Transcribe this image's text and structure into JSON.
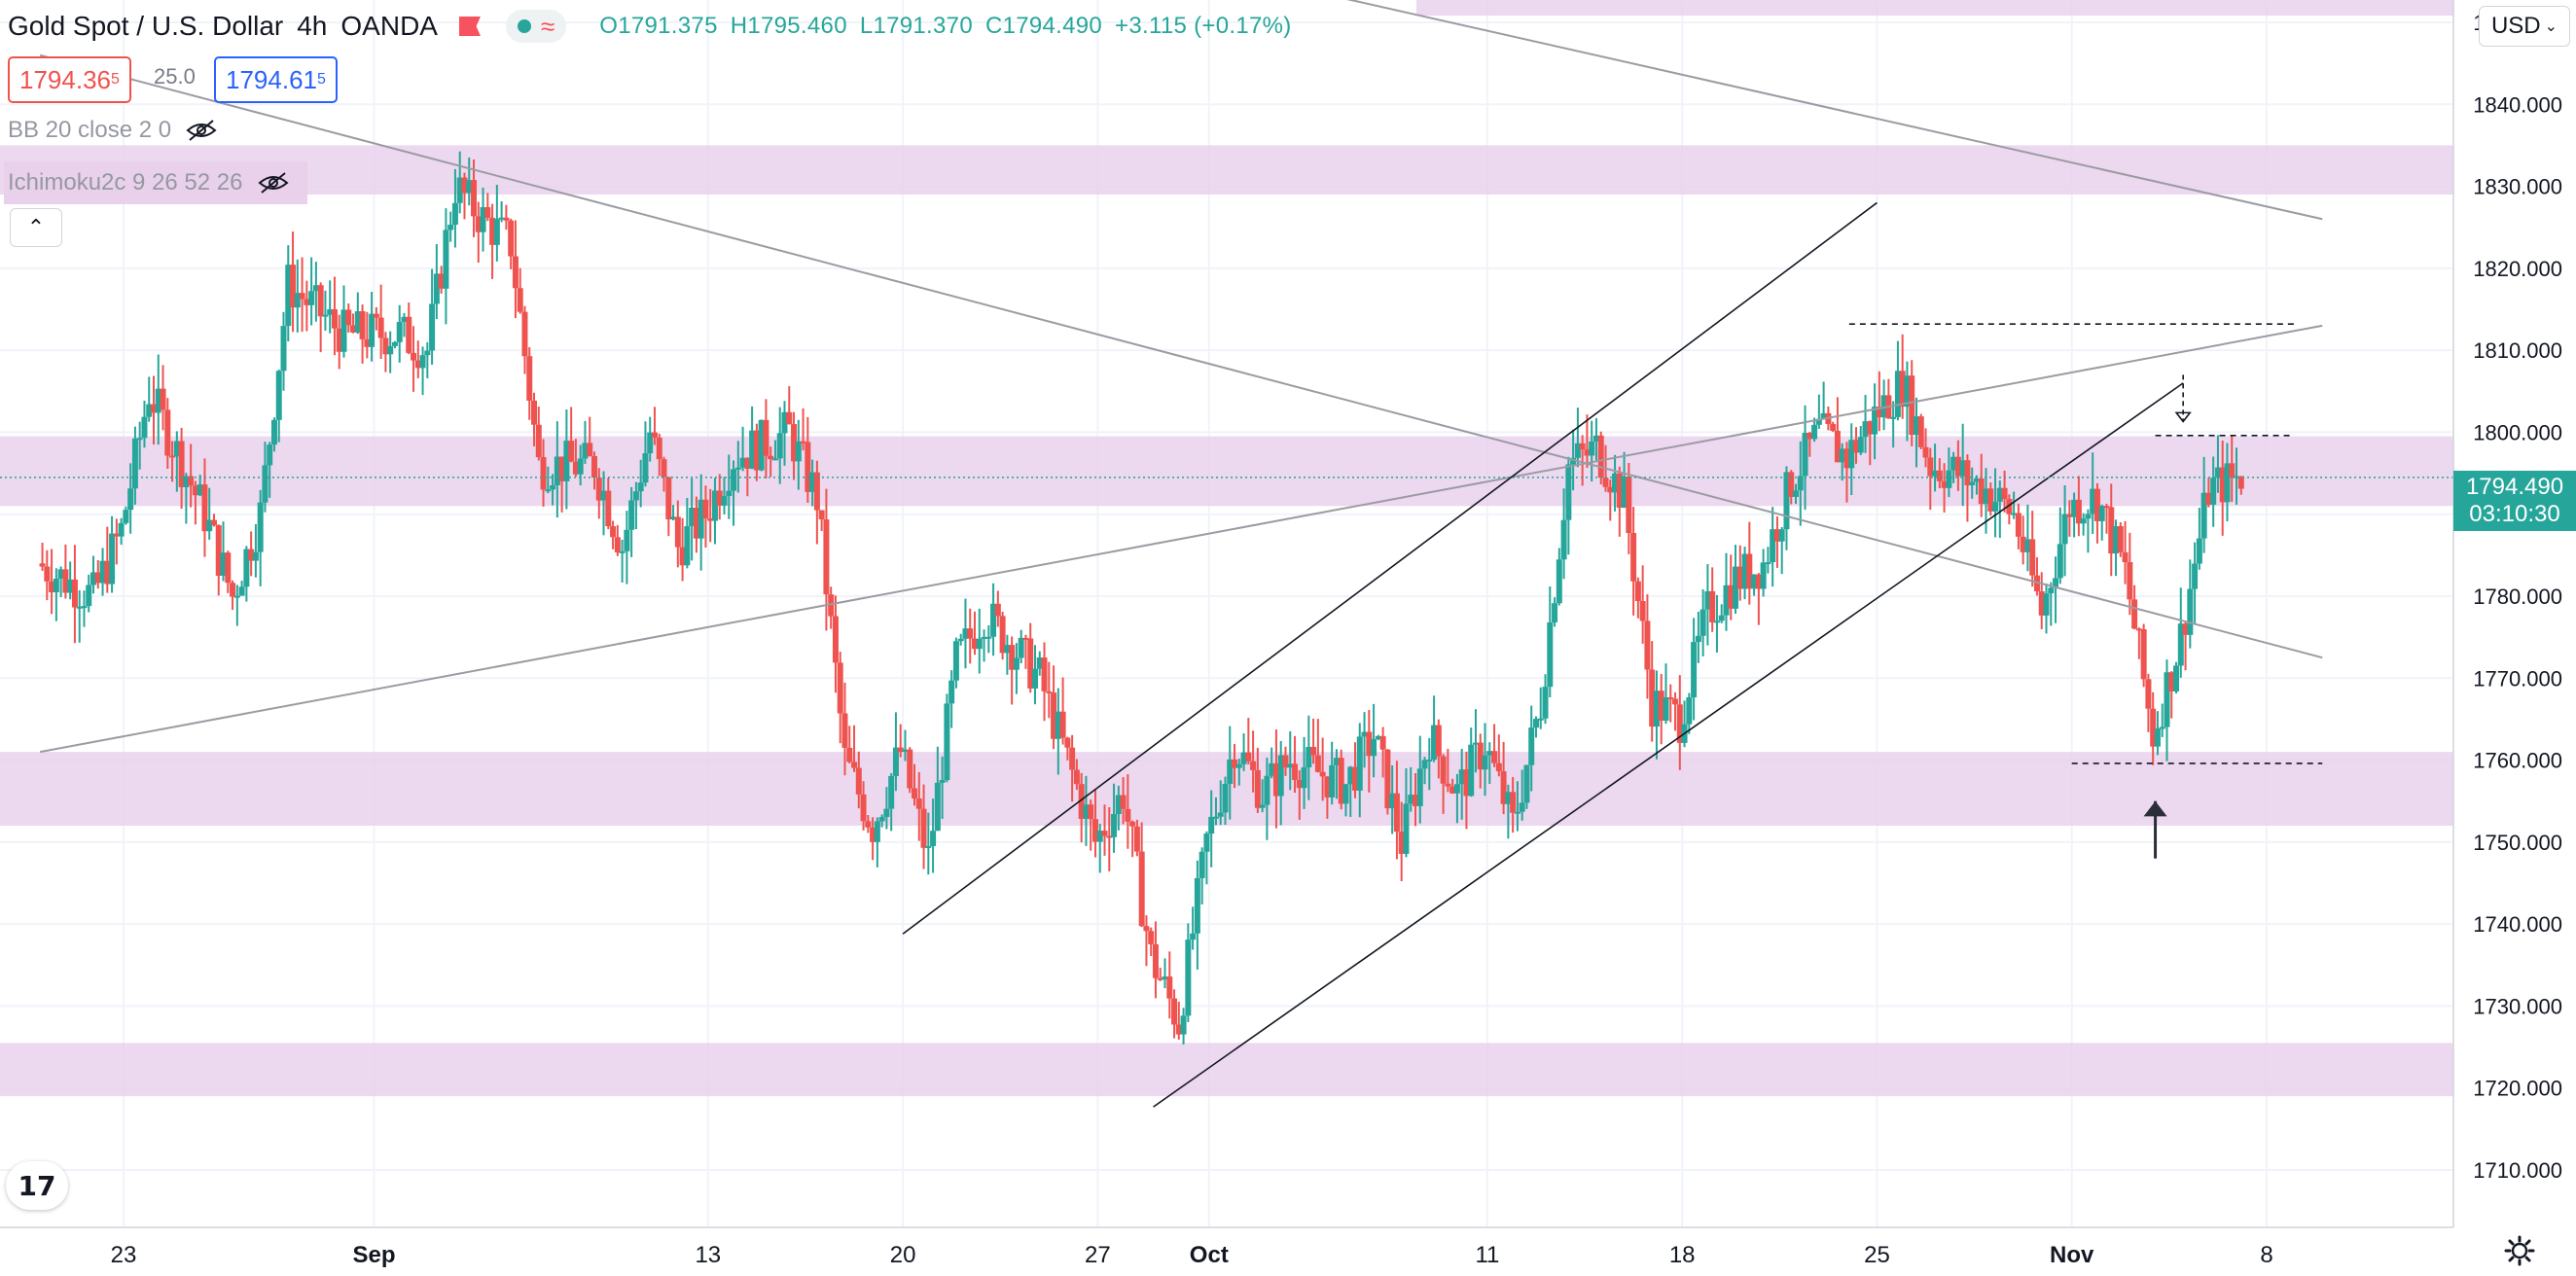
{
  "header": {
    "symbol": "Gold Spot / U.S. Dollar",
    "interval": "4h",
    "source": "OANDA",
    "open": "O1791.375",
    "high": "H1795.460",
    "low": "L1791.370",
    "close": "C1794.490",
    "change": "+3.115 (+0.17%)"
  },
  "quote": {
    "sell": "1794.36",
    "sell_sup": "5",
    "spread": "25.0",
    "buy": "1794.61",
    "buy_sup": "5"
  },
  "indicators": [
    {
      "label": "BB 20 close 2 0"
    },
    {
      "label": "Ichimoku2c 9 26 52 26"
    }
  ],
  "currency": "USD",
  "last_price": {
    "value": "1794.490",
    "countdown": "03:10:30"
  },
  "colors": {
    "up": "#26a69a",
    "down": "#ef5350",
    "zone": "#e9d1ec",
    "line": "#131722",
    "trend_gray": "#9b9ba3"
  },
  "icons": [
    "tradingview-logo-icon",
    "gear-icon",
    "eye-hidden-icon",
    "chevron-up-icon",
    "chevron-down-icon",
    "flag-icon"
  ],
  "chart_data": {
    "type": "candlestick",
    "title": "Gold Spot / U.S. Dollar",
    "interval": "4h",
    "y_ticks": [
      1710,
      1720,
      1730,
      1740,
      1750,
      1760,
      1770,
      1780,
      1790,
      1800,
      1810,
      1820,
      1830,
      1840,
      1850
    ],
    "y_tick_labels": [
      "1710.000",
      "1720.000",
      "1730.000",
      "1740.000",
      "1750.000",
      "1760.000",
      "1770.000",
      "1780.000",
      "1790.000",
      "1800.000",
      "1810.000",
      "1820.000",
      "1830.000",
      "1840.000",
      "1850.000"
    ],
    "ylim": [
      1703,
      1853
    ],
    "x_range_days": [
      "2021-08-20",
      "2021-11-10"
    ],
    "x_ticks": [
      {
        "date": "2021-08-23",
        "label": "23"
      },
      {
        "date": "2021-09-01",
        "label": "Sep"
      },
      {
        "date": "2021-09-13",
        "label": "13"
      },
      {
        "date": "2021-09-20",
        "label": "20"
      },
      {
        "date": "2021-09-27",
        "label": "27"
      },
      {
        "date": "2021-10-01",
        "label": "Oct"
      },
      {
        "date": "2021-10-11",
        "label": "11"
      },
      {
        "date": "2021-10-18",
        "label": "18"
      },
      {
        "date": "2021-10-25",
        "label": "25"
      },
      {
        "date": "2021-11-01",
        "label": "Nov"
      },
      {
        "date": "2021-11-08",
        "label": "8"
      }
    ],
    "price_path": [
      [
        "2021-08-20",
        1784
      ],
      [
        "2021-08-22",
        1780
      ],
      [
        "2021-08-23",
        1788
      ],
      [
        "2021-08-24",
        1805
      ],
      [
        "2021-08-26",
        1790
      ],
      [
        "2021-08-27",
        1780
      ],
      [
        "2021-08-28",
        1790
      ],
      [
        "2021-08-29",
        1818
      ],
      [
        "2021-08-31",
        1812
      ],
      [
        "2021-09-02",
        1812
      ],
      [
        "2021-09-03",
        1810
      ],
      [
        "2021-09-04",
        1830
      ],
      [
        "2021-09-05",
        1826
      ],
      [
        "2021-09-06",
        1823
      ],
      [
        "2021-09-07",
        1796
      ],
      [
        "2021-09-09",
        1796
      ],
      [
        "2021-09-10",
        1786
      ],
      [
        "2021-09-11",
        1800
      ],
      [
        "2021-09-12",
        1786
      ],
      [
        "2021-09-13",
        1790
      ],
      [
        "2021-09-14",
        1797
      ],
      [
        "2021-09-16",
        1800
      ],
      [
        "2021-09-17",
        1792
      ],
      [
        "2021-09-18",
        1760
      ],
      [
        "2021-09-19",
        1752
      ],
      [
        "2021-09-20",
        1761
      ],
      [
        "2021-09-21",
        1748
      ],
      [
        "2021-09-22",
        1772
      ],
      [
        "2021-09-23",
        1778
      ],
      [
        "2021-09-24",
        1774
      ],
      [
        "2021-09-25",
        1770
      ],
      [
        "2021-09-26",
        1760
      ],
      [
        "2021-09-27",
        1750
      ],
      [
        "2021-09-28",
        1756
      ],
      [
        "2021-09-29",
        1736
      ],
      [
        "2021-09-30",
        1728
      ],
      [
        "2021-10-01",
        1750
      ],
      [
        "2021-10-02",
        1762
      ],
      [
        "2021-10-03",
        1756
      ],
      [
        "2021-10-04",
        1760
      ],
      [
        "2021-10-06",
        1757
      ],
      [
        "2021-10-07",
        1763
      ],
      [
        "2021-10-08",
        1750
      ],
      [
        "2021-10-09",
        1763
      ],
      [
        "2021-10-10",
        1756
      ],
      [
        "2021-10-11",
        1762
      ],
      [
        "2021-10-12",
        1752
      ],
      [
        "2021-10-13",
        1767
      ],
      [
        "2021-10-14",
        1796
      ],
      [
        "2021-10-15",
        1798
      ],
      [
        "2021-10-16",
        1792
      ],
      [
        "2021-10-17",
        1767
      ],
      [
        "2021-10-18",
        1765
      ],
      [
        "2021-10-19",
        1778
      ],
      [
        "2021-10-20",
        1782
      ],
      [
        "2021-10-21",
        1784
      ],
      [
        "2021-10-22",
        1794
      ],
      [
        "2021-10-23",
        1800
      ],
      [
        "2021-10-24",
        1797
      ],
      [
        "2021-10-25",
        1802
      ],
      [
        "2021-10-26",
        1806
      ],
      [
        "2021-10-27",
        1796
      ],
      [
        "2021-10-28",
        1795
      ],
      [
        "2021-10-29",
        1793
      ],
      [
        "2021-10-30",
        1790
      ],
      [
        "2021-10-31",
        1778
      ],
      [
        "2021-11-01",
        1791
      ],
      [
        "2021-11-02",
        1792
      ],
      [
        "2021-11-03",
        1783
      ],
      [
        "2021-11-04",
        1763
      ],
      [
        "2021-11-05",
        1775
      ],
      [
        "2021-11-06",
        1793
      ],
      [
        "2021-11-07",
        1794.49
      ]
    ],
    "last_price": 1794.49,
    "zones": [
      {
        "low": 1829,
        "high": 1835
      },
      {
        "low": 1791,
        "high": 1799.5
      },
      {
        "low": 1752,
        "high": 1761
      },
      {
        "low": 1719,
        "high": 1725.5
      }
    ],
    "trendlines": [
      {
        "from": [
          "2021-08-20",
          1761
        ],
        "to": [
          "2021-11-10",
          1813
        ],
        "style": "gray"
      },
      {
        "from": [
          "2021-08-20",
          1846
        ],
        "to": [
          "2021-11-10",
          1772.5
        ],
        "style": "gray"
      },
      {
        "from": [
          "2021-09-24",
          1862
        ],
        "to": [
          "2021-11-10",
          1826
        ],
        "style": "gray"
      },
      {
        "from": [
          "2021-09-20",
          1738.8
        ],
        "to": [
          "2021-10-25",
          1828
        ],
        "style": "black"
      },
      {
        "from": [
          "2021-09-29",
          1717.7
        ],
        "to": [
          "2021-11-05",
          1806
        ],
        "style": "black"
      }
    ],
    "horizontal_levels": [
      {
        "from": "2021-10-24",
        "to": "2021-11-09",
        "price": 1813.2,
        "style": "dashed"
      },
      {
        "from": "2021-11-04",
        "to": "2021-11-09",
        "price": 1799.6,
        "style": "dashed"
      },
      {
        "from": "2021-11-01",
        "to": "2021-11-10",
        "price": 1759.6,
        "style": "dashed"
      }
    ],
    "arrows": [
      {
        "date": "2021-11-04",
        "from": 1748,
        "to": 1755,
        "direction": "up"
      },
      {
        "date": "2021-11-05",
        "from": 1807,
        "to": 1801.3,
        "direction": "down",
        "style": "dashed"
      }
    ]
  }
}
